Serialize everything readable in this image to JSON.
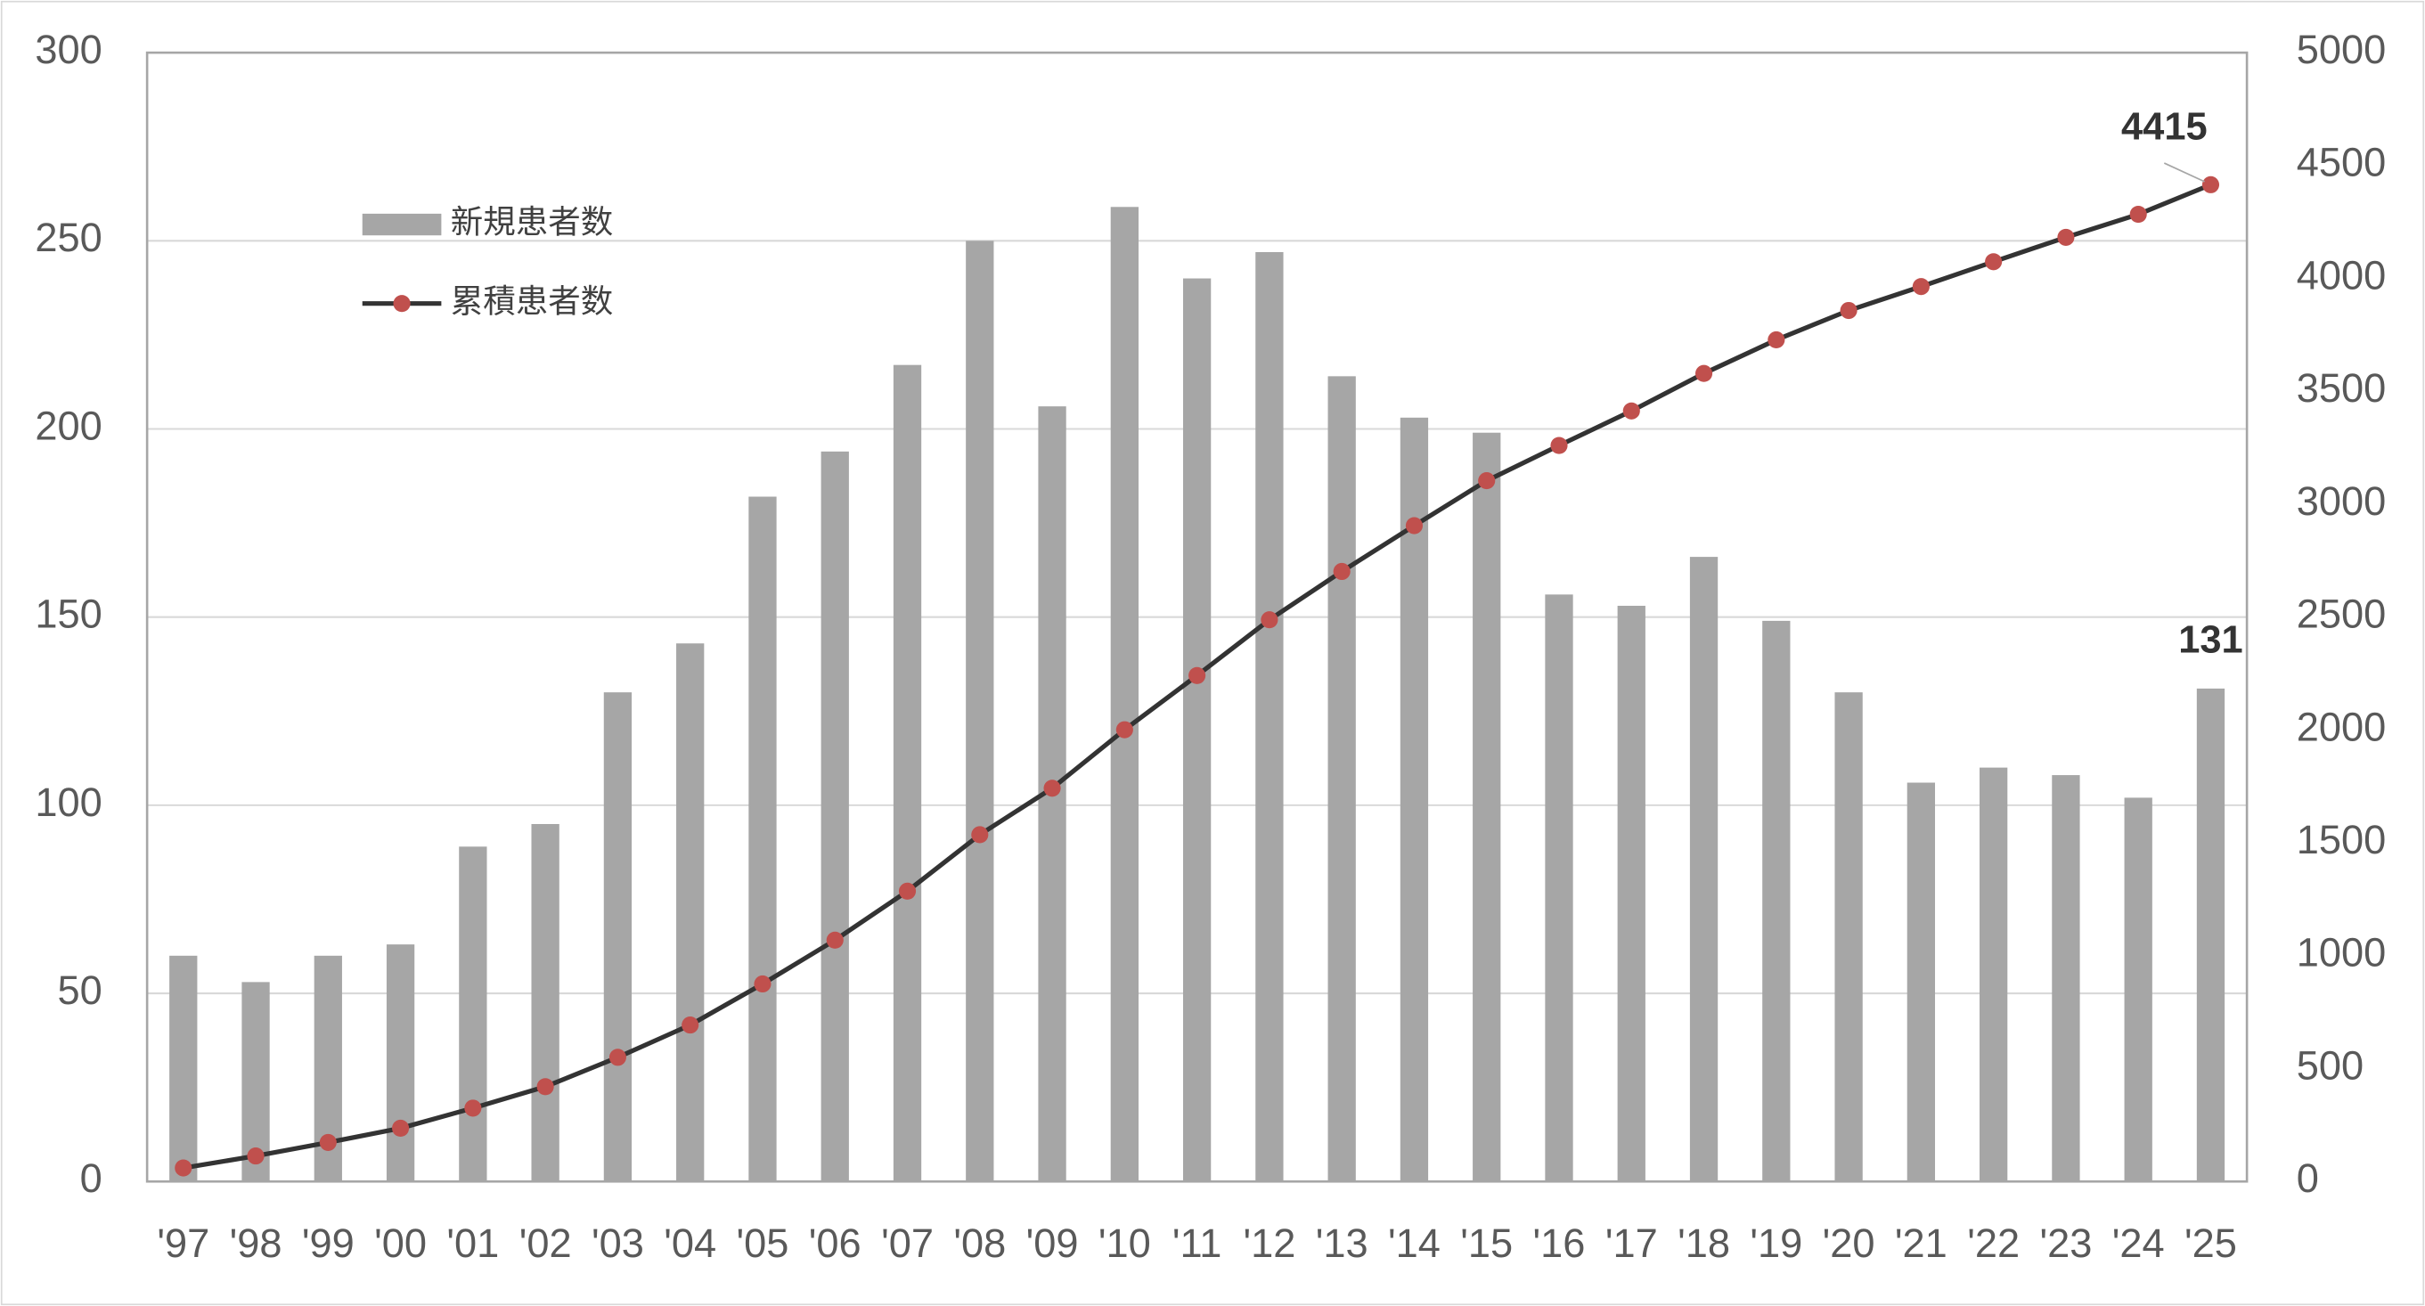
{
  "chart_data": {
    "type": "bar-line",
    "categories": [
      "'97",
      "'98",
      "'99",
      "'00",
      "'01",
      "'02",
      "'03",
      "'04",
      "'05",
      "'06",
      "'07",
      "'08",
      "'09",
      "'10",
      "'11",
      "'12",
      "'13",
      "'14",
      "'15",
      "'16",
      "'17",
      "'18",
      "'19",
      "'20",
      "'21",
      "'22",
      "'23",
      "'24",
      "'25"
    ],
    "series": [
      {
        "name": "新規患者数",
        "type": "bar",
        "color": "#a6a6a6",
        "axis": "y",
        "values": [
          60,
          53,
          60,
          63,
          89,
          95,
          130,
          143,
          182,
          194,
          217,
          250,
          206,
          259,
          240,
          247,
          214,
          203,
          199,
          156,
          153,
          166,
          149,
          130,
          106,
          110,
          108,
          102,
          131
        ]
      },
      {
        "name": "累積患者数",
        "type": "line",
        "color": "#333333",
        "marker_color": "#c0504d",
        "axis": "y2",
        "values": [
          60,
          113,
          173,
          236,
          325,
          420,
          550,
          693,
          875,
          1069,
          1286,
          1536,
          1742,
          2001,
          2241,
          2488,
          2702,
          2905,
          3104,
          3260,
          3413,
          3579,
          3728,
          3858,
          3964,
          4074,
          4182,
          4284,
          4415
        ]
      }
    ],
    "ylim": [
      0,
      300
    ],
    "yticks": [
      0,
      50,
      100,
      150,
      200,
      250,
      300
    ],
    "y2lim": [
      0,
      5000
    ],
    "y2ticks": [
      0,
      500,
      1000,
      1500,
      2000,
      2500,
      3000,
      3500,
      4000,
      4500,
      5000
    ],
    "grid": true,
    "legend": "upper left"
  }
}
